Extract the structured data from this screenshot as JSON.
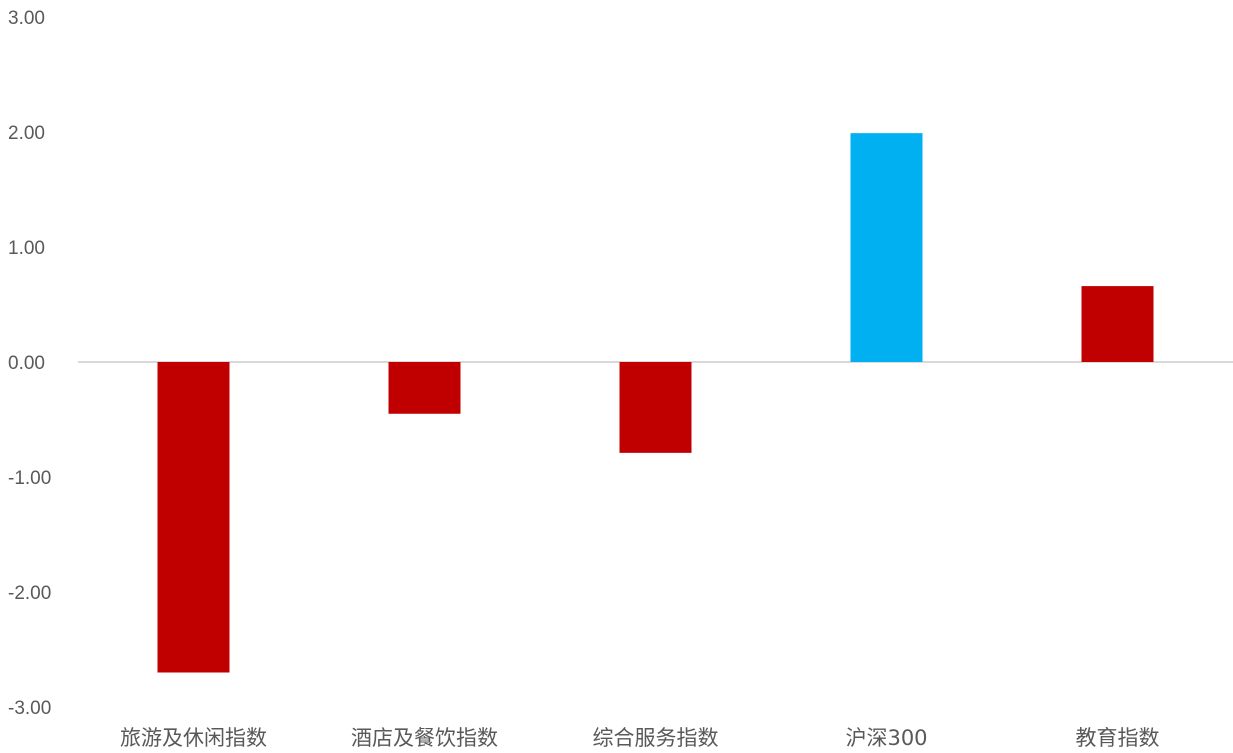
{
  "chart_data": {
    "type": "bar",
    "title": "",
    "xlabel": "",
    "ylabel": "",
    "categories": [
      "旅游及休闲指数",
      "酒店及餐饮指数",
      "综合服务指数",
      "沪深300",
      "教育指数"
    ],
    "values": [
      -2.7,
      -0.45,
      -0.79,
      1.99,
      0.66
    ],
    "bar_colors": [
      "#C00000",
      "#C00000",
      "#C00000",
      "#00B0F0",
      "#C00000"
    ],
    "ylim": [
      -3,
      3
    ],
    "yticks": [
      3,
      2,
      1,
      0,
      -1,
      -2,
      -3
    ],
    "ytick_labels": [
      "3.00",
      "2.00",
      "1.00",
      "0.00",
      "-1.00",
      "-2.00",
      "-3.00"
    ],
    "grid": false,
    "legend": "none",
    "zero_line_color": "#D9D9D9"
  }
}
